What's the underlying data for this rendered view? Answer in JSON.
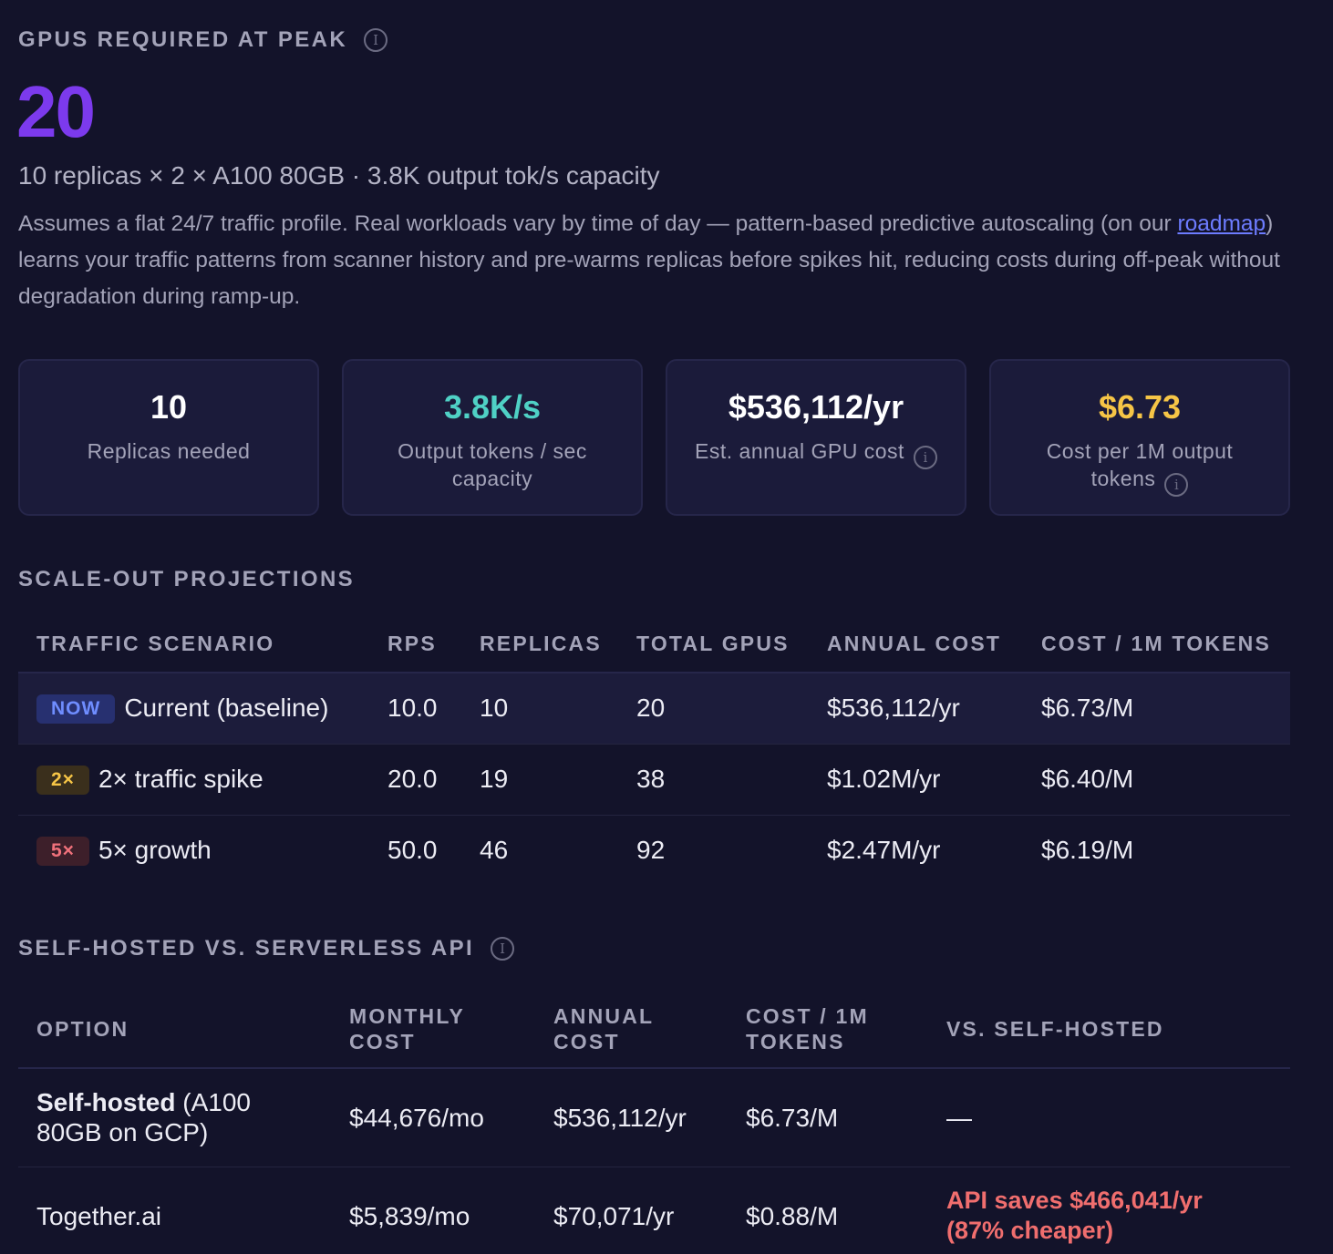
{
  "header": {
    "title": "GPUS REQUIRED AT PEAK",
    "info_icon": "info-icon",
    "gpu_count": "20",
    "summary": "10 replicas × 2 × A100 80GB · 3.8K output tok/s capacity",
    "assumes_before": "Assumes a flat 24/7 traffic profile. Real workloads vary by time of day — pattern-based predictive autoscaling (on our ",
    "assumes_link": "roadmap",
    "assumes_after": ") learns your traffic patterns from scanner history and pre-warms replicas before spikes hit, reducing costs during off-peak without degradation during ramp-up."
  },
  "cards": [
    {
      "value": "10",
      "label": "Replicas needed",
      "color": "#ffffff"
    },
    {
      "value": "3.8K/s",
      "label": "Output tokens / sec capacity",
      "color": "#4fd1c5"
    },
    {
      "value": "$536,112/yr",
      "label": "Est. annual GPU cost",
      "color": "#ffffff"
    },
    {
      "value": "$6.73",
      "label": "Cost per 1M output tokens",
      "color": "#f6c546"
    }
  ],
  "scale_out": {
    "title": "SCALE-OUT PROJECTIONS",
    "columns": [
      "TRAFFIC SCENARIO",
      "RPS",
      "REPLICAS",
      "TOTAL GPUS",
      "ANNUAL COST",
      "COST / 1M TOKENS"
    ],
    "rows": [
      {
        "badge": "NOW",
        "scenario": "Current (baseline)",
        "rps": "10.0",
        "replicas": "10",
        "gpus": "20",
        "annual": "$536,112/yr",
        "per_m": "$6.73/M"
      },
      {
        "badge": "2×",
        "scenario": "2× traffic spike",
        "rps": "20.0",
        "replicas": "19",
        "gpus": "38",
        "annual": "$1.02M/yr",
        "per_m": "$6.40/M"
      },
      {
        "badge": "5×",
        "scenario": "5× growth",
        "rps": "50.0",
        "replicas": "46",
        "gpus": "92",
        "annual": "$2.47M/yr",
        "per_m": "$6.19/M"
      }
    ]
  },
  "comparison": {
    "title": "SELF-HOSTED VS. SERVERLESS API",
    "columns": [
      "OPTION",
      "MONTHLY COST",
      "ANNUAL COST",
      "COST / 1M TOKENS",
      "VS. SELF-HOSTED"
    ],
    "rows": [
      {
        "option_bold": "Self-hosted",
        "option_rest": " (A100 80GB on GCP)",
        "monthly": "$44,676/mo",
        "annual": "$536,112/yr",
        "per_m": "$6.73/M",
        "vs": "—"
      },
      {
        "option_bold": "",
        "option_rest": "Together.ai",
        "monthly": "$5,839/mo",
        "annual": "$70,071/yr",
        "per_m": "$0.88/M",
        "vs": "API saves $466,041/yr (87% cheaper)"
      }
    ]
  }
}
